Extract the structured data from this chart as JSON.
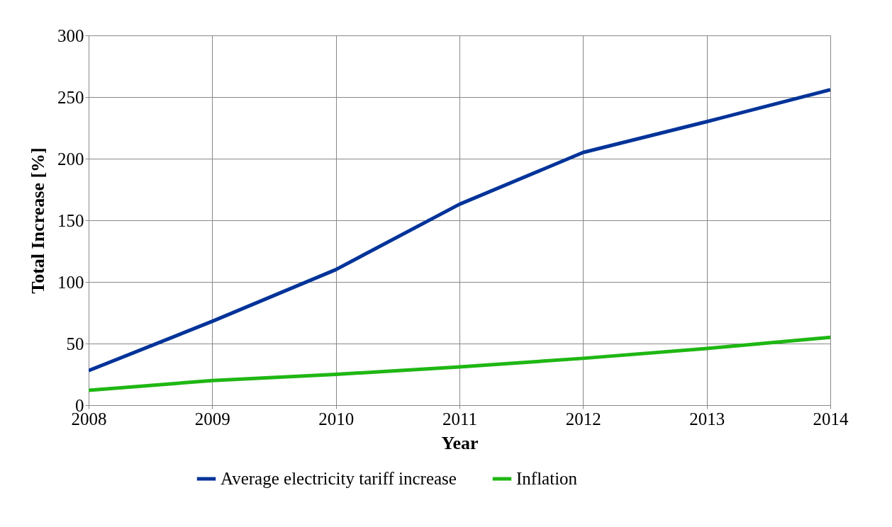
{
  "chart_data": {
    "type": "line",
    "xlabel": "Year",
    "ylabel": "Total Increase [%]",
    "x": [
      2008,
      2009,
      2010,
      2011,
      2012,
      2013,
      2014
    ],
    "series": [
      {
        "name": "Average electricity tariff increase",
        "color": "#003399",
        "values": [
          28,
          68,
          110,
          163,
          205,
          230,
          256
        ]
      },
      {
        "name": "Inflation",
        "color": "#1fb714",
        "values": [
          12,
          20,
          25,
          31,
          38,
          46,
          55
        ]
      }
    ],
    "xlim": [
      2008,
      2014
    ],
    "xticks": [
      2008,
      2009,
      2010,
      2011,
      2012,
      2013,
      2014
    ],
    "ylim": [
      0,
      300
    ],
    "yticks": [
      0,
      50,
      100,
      150,
      200,
      250,
      300
    ],
    "grid": true,
    "legend": "bottom",
    "marker": "none",
    "line_style": "solid"
  }
}
